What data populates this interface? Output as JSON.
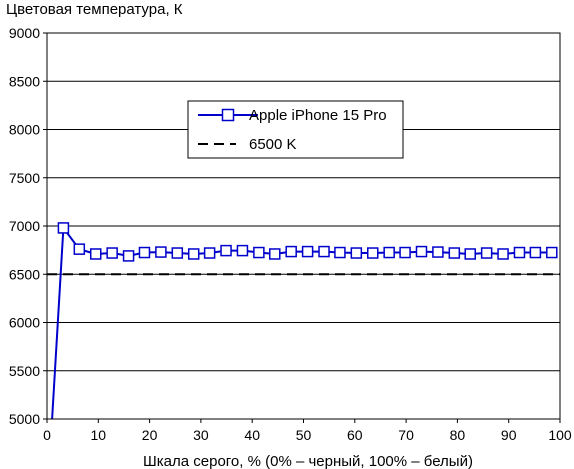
{
  "chart_data": {
    "type": "line",
    "title": "Цветовая температура, К",
    "xlabel": "Шкала серого, % (0% – черный, 100% – белый)",
    "ylabel": "",
    "xlim": [
      0,
      100
    ],
    "ylim": [
      5000,
      9000
    ],
    "x_ticks": [
      0,
      10,
      20,
      30,
      40,
      50,
      60,
      70,
      80,
      90,
      100
    ],
    "y_ticks": [
      5000,
      5500,
      6000,
      6500,
      7000,
      7500,
      8000,
      8500,
      9000
    ],
    "grid": "horizontal",
    "legend_position": "top-center",
    "series": [
      {
        "name": "Apple iPhone 15 Pro",
        "color": "#0000cc",
        "marker": "square-open",
        "x": [
          1.0,
          3.2,
          6.3,
          9.5,
          12.7,
          15.9,
          19.0,
          22.2,
          25.4,
          28.6,
          31.7,
          34.9,
          38.1,
          41.3,
          44.4,
          47.6,
          50.8,
          54.0,
          57.1,
          60.3,
          63.5,
          66.7,
          69.8,
          73.0,
          76.2,
          79.4,
          82.5,
          85.7,
          88.9,
          92.1,
          95.2,
          98.4
        ],
        "y": [
          4980,
          6980,
          6760,
          6710,
          6720,
          6690,
          6725,
          6730,
          6720,
          6710,
          6720,
          6745,
          6745,
          6725,
          6710,
          6735,
          6735,
          6735,
          6725,
          6720,
          6720,
          6725,
          6725,
          6735,
          6730,
          6720,
          6710,
          6720,
          6710,
          6725,
          6725,
          6725
        ]
      },
      {
        "name": "6500 K",
        "color": "#000000",
        "style": "dashed",
        "x": [
          0,
          100
        ],
        "y": [
          6500,
          6500
        ]
      }
    ]
  }
}
